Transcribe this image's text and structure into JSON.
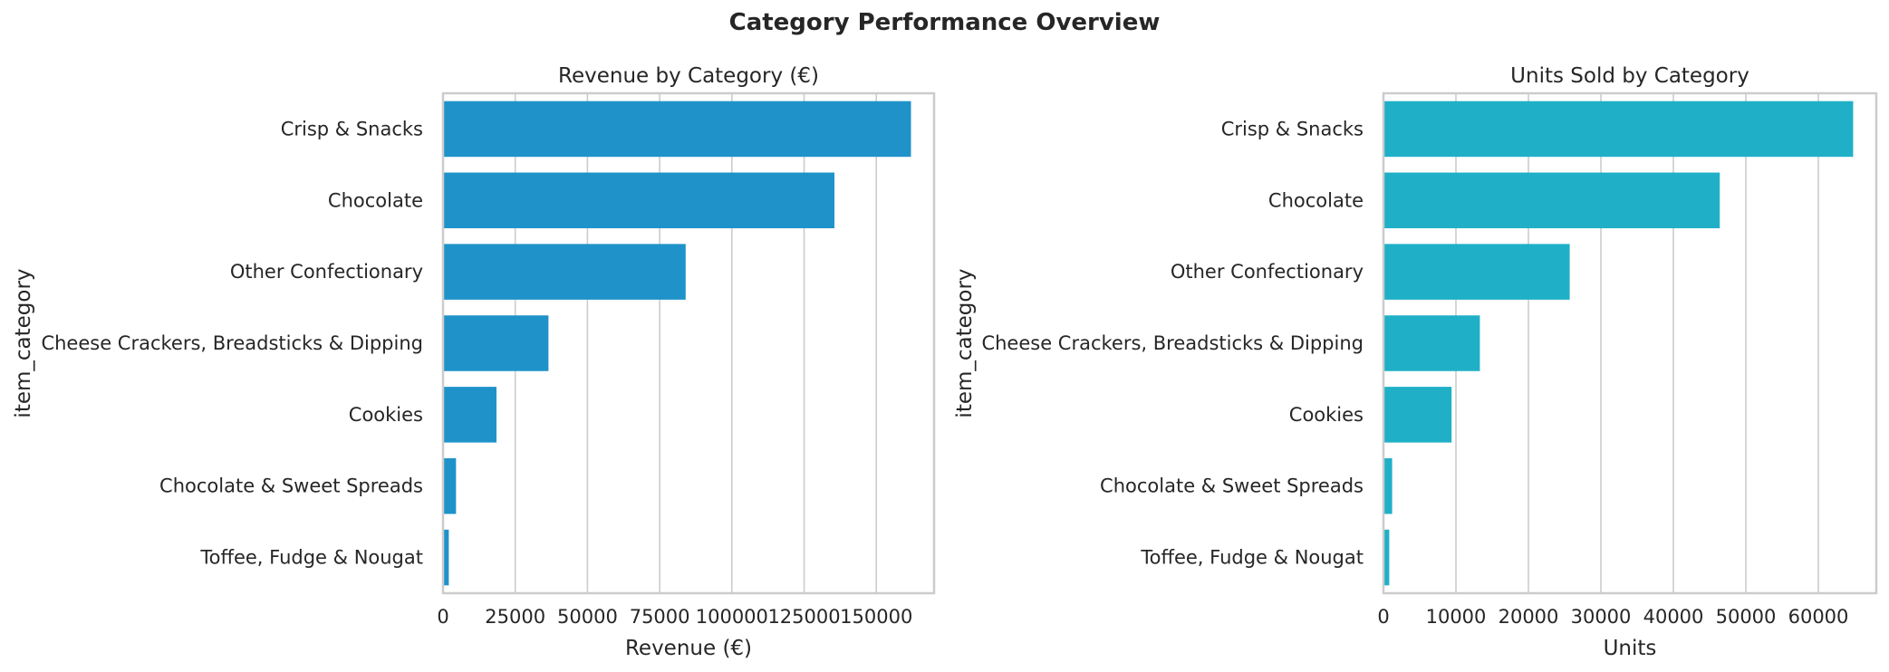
{
  "suptitle": "Category Performance Overview",
  "chart_data": [
    {
      "type": "bar",
      "orientation": "horizontal",
      "title": "Revenue by Category (€)",
      "xlabel": "Revenue (€)",
      "ylabel": "item_category",
      "categories": [
        "Crisp & Snacks",
        "Chocolate",
        "Other Confectionary",
        "Cheese Crackers, Breadsticks & Dipping",
        "Cookies",
        "Chocolate & Sweet Spreads",
        "Toffee, Fudge & Nougat"
      ],
      "values": [
        162000,
        135500,
        84000,
        36500,
        18500,
        4500,
        2000
      ],
      "xlim": [
        0,
        170000
      ],
      "xticks": [
        0,
        25000,
        50000,
        75000,
        100000,
        125000,
        150000
      ],
      "grid": "vertical",
      "color": "#1f93c9"
    },
    {
      "type": "bar",
      "orientation": "horizontal",
      "title": "Units Sold by Category",
      "xlabel": "Units",
      "ylabel": "item_category",
      "categories": [
        "Crisp & Snacks",
        "Chocolate",
        "Other Confectionary",
        "Cheese Crackers, Breadsticks & Dipping",
        "Cookies",
        "Chocolate & Sweet Spreads",
        "Toffee, Fudge & Nougat"
      ],
      "values": [
        64800,
        46400,
        25700,
        13300,
        9400,
        1200,
        800
      ],
      "xlim": [
        0,
        68000
      ],
      "xticks": [
        0,
        10000,
        20000,
        30000,
        40000,
        50000,
        60000
      ],
      "grid": "vertical",
      "color": "#1fb0c7"
    }
  ]
}
